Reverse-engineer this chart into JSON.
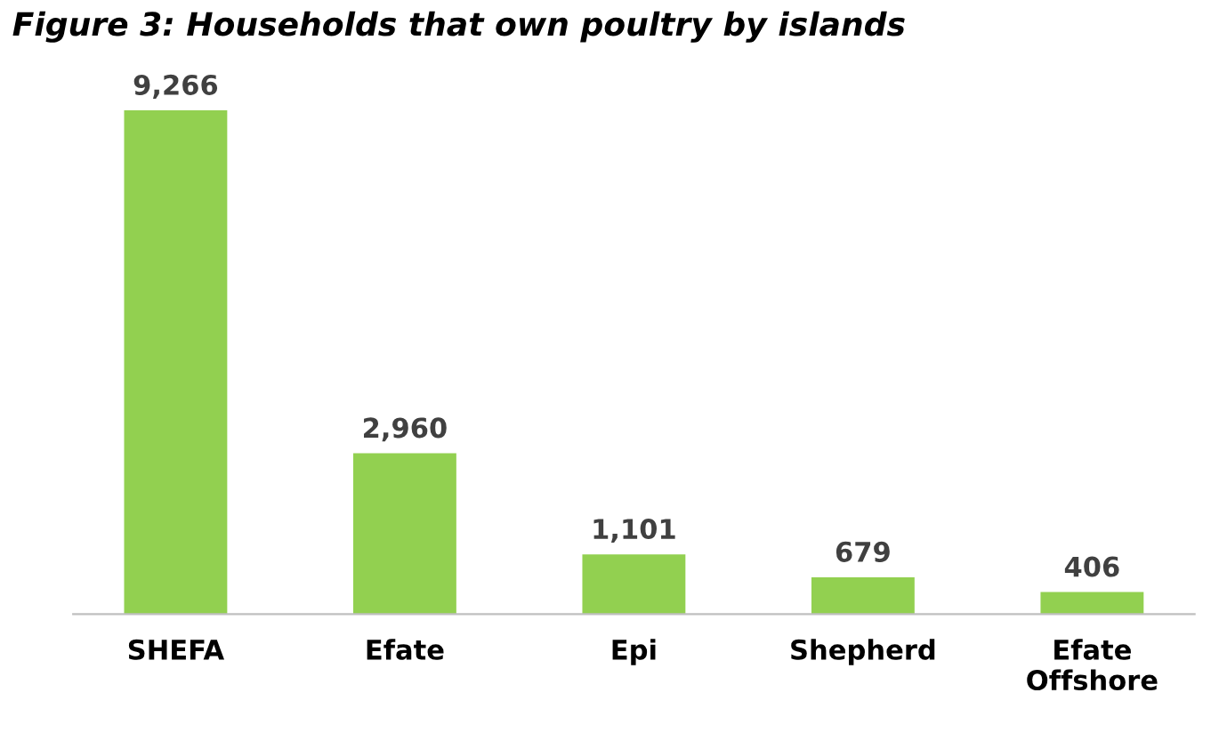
{
  "chart_data": {
    "type": "bar",
    "title": "Figure 3: Households that own poultry by islands",
    "categories": [
      "SHEFA",
      "Efate",
      "Epi",
      "Shepherd",
      "Efate\nOffshore"
    ],
    "values": [
      9266,
      2960,
      1101,
      679,
      406
    ],
    "value_labels": [
      "9,266",
      "2,960",
      "1,101",
      "679",
      "406"
    ],
    "color": "#92d050",
    "grid": false,
    "legend": false
  }
}
